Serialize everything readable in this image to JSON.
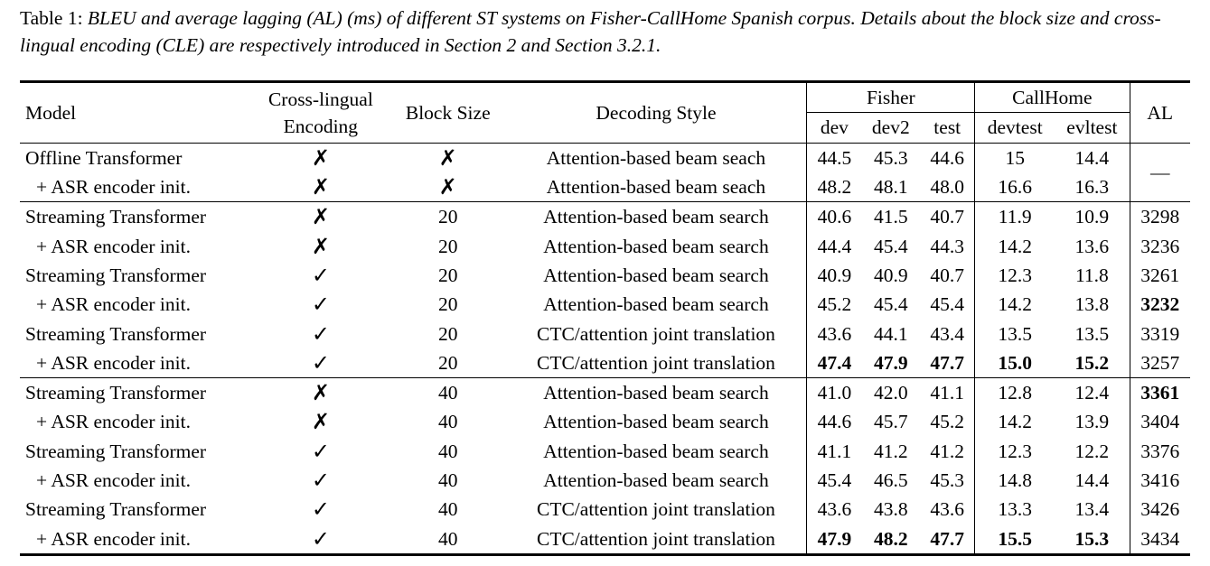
{
  "caption": {
    "label": "Table 1:",
    "text": "BLEU and average lagging (AL) (ms) of different ST systems on Fisher-CallHome Spanish corpus. Details about the block size and cross-lingual encoding (CLE) are respectively introduced in Section 2 and Section 3.2.1."
  },
  "header": {
    "model": "Model",
    "cle_line1": "Cross-lingual",
    "cle_line2": "Encoding",
    "block_size": "Block Size",
    "decoding_style": "Decoding Style",
    "fisher": "Fisher",
    "callhome": "CallHome",
    "al": "AL",
    "sub": [
      "dev",
      "dev2",
      "test",
      "devtest",
      "evltest"
    ]
  },
  "symbols": {
    "yes": "✓",
    "no": "✗"
  },
  "offline_al": "—",
  "rows": [
    {
      "model": "Offline Transformer",
      "cle": "✗",
      "block": "✗",
      "decoding": "Attention-based beam seach",
      "dev": "44.5",
      "dev2": "45.3",
      "test": "44.6",
      "devtest": "15",
      "evltest": "14.4"
    },
    {
      "model": "+ ASR encoder init.",
      "cle": "✗",
      "block": "✗",
      "decoding": "Attention-based beam seach",
      "dev": "48.2",
      "dev2": "48.1",
      "test": "48.0",
      "devtest": "16.6",
      "evltest": "16.3"
    },
    {
      "model": "Streaming Transformer",
      "cle": "✗",
      "block": "20",
      "decoding": "Attention-based beam search",
      "dev": "40.6",
      "dev2": "41.5",
      "test": "40.7",
      "devtest": "11.9",
      "evltest": "10.9",
      "al": "3298"
    },
    {
      "model": "+ ASR encoder init.",
      "cle": "✗",
      "block": "20",
      "decoding": "Attention-based beam search",
      "dev": "44.4",
      "dev2": "45.4",
      "test": "44.3",
      "devtest": "14.2",
      "evltest": "13.6",
      "al": "3236"
    },
    {
      "model": "Streaming Transformer",
      "cle": "✓",
      "block": "20",
      "decoding": "Attention-based beam search",
      "dev": "40.9",
      "dev2": "40.9",
      "test": "40.7",
      "devtest": "12.3",
      "evltest": "11.8",
      "al": "3261"
    },
    {
      "model": "+ ASR encoder init.",
      "cle": "✓",
      "block": "20",
      "decoding": "Attention-based beam search",
      "dev": "45.2",
      "dev2": "45.4",
      "test": "45.4",
      "devtest": "14.2",
      "evltest": "13.8",
      "al": "3232"
    },
    {
      "model": "Streaming Transformer",
      "cle": "✓",
      "block": "20",
      "decoding": "CTC/attention joint translation",
      "dev": "43.6",
      "dev2": "44.1",
      "test": "43.4",
      "devtest": "13.5",
      "evltest": "13.5",
      "al": "3319"
    },
    {
      "model": "+ ASR encoder init.",
      "cle": "✓",
      "block": "20",
      "decoding": "CTC/attention joint translation",
      "dev": "47.4",
      "dev2": "47.9",
      "test": "47.7",
      "devtest": "15.0",
      "evltest": "15.2",
      "al": "3257"
    },
    {
      "model": "Streaming Transformer",
      "cle": "✗",
      "block": "40",
      "decoding": "Attention-based beam search",
      "dev": "41.0",
      "dev2": "42.0",
      "test": "41.1",
      "devtest": "12.8",
      "evltest": "12.4",
      "al": "3361"
    },
    {
      "model": "+ ASR encoder init.",
      "cle": "✗",
      "block": "40",
      "decoding": "Attention-based beam search",
      "dev": "44.6",
      "dev2": "45.7",
      "test": "45.2",
      "devtest": "14.2",
      "evltest": "13.9",
      "al": "3404"
    },
    {
      "model": "Streaming Transformer",
      "cle": "✓",
      "block": "40",
      "decoding": "Attention-based beam search",
      "dev": "41.1",
      "dev2": "41.2",
      "test": "41.2",
      "devtest": "12.3",
      "evltest": "12.2",
      "al": "3376"
    },
    {
      "model": "+ ASR encoder init.",
      "cle": "✓",
      "block": "40",
      "decoding": "Attention-based beam search",
      "dev": "45.4",
      "dev2": "46.5",
      "test": "45.3",
      "devtest": "14.8",
      "evltest": "14.4",
      "al": "3416"
    },
    {
      "model": "Streaming Transformer",
      "cle": "✓",
      "block": "40",
      "decoding": "CTC/attention joint translation",
      "dev": "43.6",
      "dev2": "43.8",
      "test": "43.6",
      "devtest": "13.3",
      "evltest": "13.4",
      "al": "3426"
    },
    {
      "model": "+ ASR encoder init.",
      "cle": "✓",
      "block": "40",
      "decoding": "CTC/attention joint translation",
      "dev": "47.9",
      "dev2": "48.2",
      "test": "47.7",
      "devtest": "15.5",
      "evltest": "15.3",
      "al": "3434"
    }
  ]
}
